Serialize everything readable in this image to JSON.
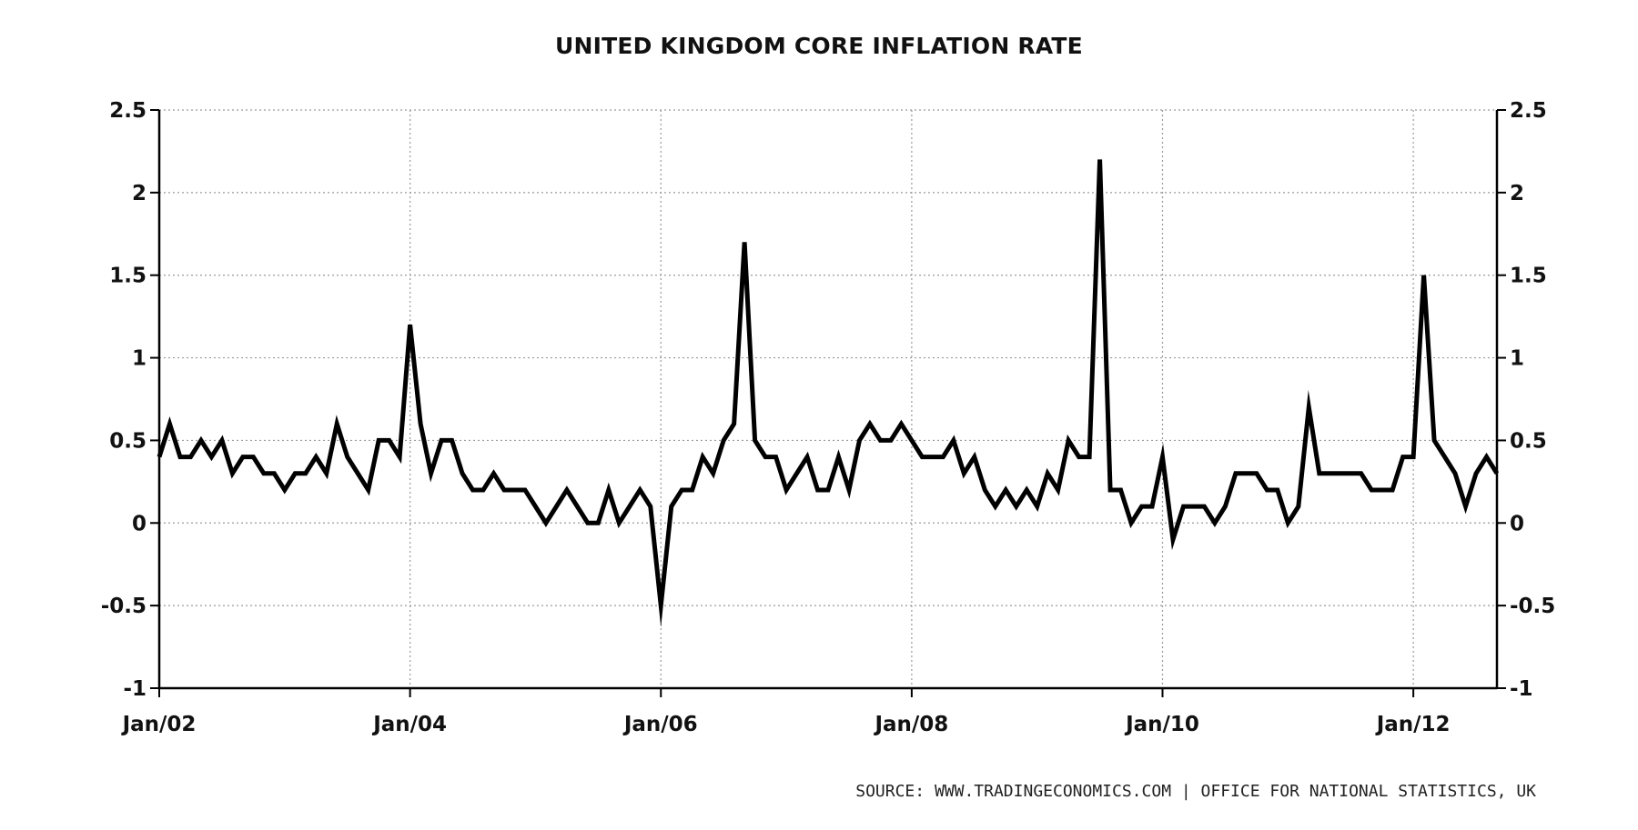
{
  "chart_data": {
    "type": "line",
    "title": "UNITED KINGDOM CORE INFLATION RATE",
    "source": "SOURCE: WWW.TRADINGECONOMICS.COM | OFFICE FOR NATIONAL STATISTICS, UK",
    "x_tick_labels": [
      "Jan/02",
      "Jan/04",
      "Jan/06",
      "Jan/08",
      "Jan/10",
      "Jan/12"
    ],
    "y_tick_labels": [
      "2.5",
      "2",
      "1.5",
      "1",
      "0.5",
      "0",
      "-0.5",
      "-1"
    ],
    "y_ticks": [
      2.5,
      2,
      1.5,
      1,
      0.5,
      0,
      -0.5,
      -1
    ],
    "ylim": [
      -1,
      2.5
    ],
    "x_start": "2002-01",
    "x_range": [
      "2002-01",
      "2012-09"
    ],
    "grid": true,
    "line_color": "#000000",
    "series": [
      {
        "values": [
          0.4,
          0.6,
          0.4,
          0.4,
          0.5,
          0.4,
          0.5,
          0.3,
          0.4,
          0.4,
          0.3,
          0.3,
          0.2,
          0.3,
          0.3,
          0.4,
          0.3,
          0.6,
          0.4,
          0.3,
          0.2,
          0.5,
          0.5,
          0.4,
          1.2,
          0.6,
          0.3,
          0.5,
          0.5,
          0.3,
          0.2,
          0.2,
          0.3,
          0.2,
          0.2,
          0.2,
          0.1,
          0.0,
          0.1,
          0.2,
          0.1,
          0.0,
          0.0,
          0.2,
          0.0,
          0.1,
          0.2,
          0.1,
          -0.5,
          0.1,
          0.2,
          0.2,
          0.4,
          0.3,
          0.5,
          0.6,
          1.7,
          0.5,
          0.4,
          0.4,
          0.2,
          0.3,
          0.4,
          0.2,
          0.2,
          0.4,
          0.2,
          0.5,
          0.6,
          0.5,
          0.5,
          0.6,
          0.5,
          0.4,
          0.4,
          0.4,
          0.5,
          0.3,
          0.4,
          0.2,
          0.1,
          0.2,
          0.1,
          0.2,
          0.1,
          0.3,
          0.2,
          0.5,
          0.4,
          0.4,
          2.2,
          0.2,
          0.2,
          0.0,
          0.1,
          0.1,
          0.4,
          -0.1,
          0.1,
          0.1,
          0.1,
          0.0,
          0.1,
          0.3,
          0.3,
          0.3,
          0.2,
          0.2,
          0.0,
          0.1,
          0.7,
          0.3,
          0.3,
          0.3,
          0.3,
          0.3,
          0.2,
          0.2,
          0.2,
          0.4,
          0.4,
          1.5,
          0.5,
          0.4,
          0.3,
          0.1,
          0.3,
          0.4,
          0.3
        ]
      }
    ]
  }
}
